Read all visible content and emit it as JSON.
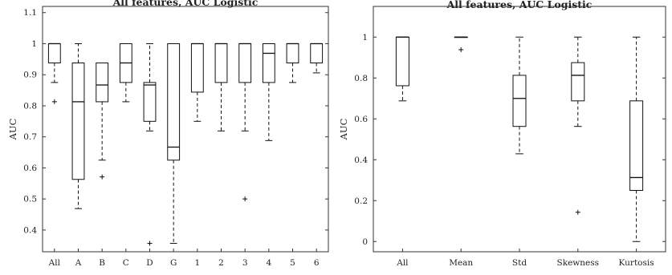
{
  "chart_data": [
    {
      "type": "box",
      "title": "All features, AUC Logistic",
      "xlabel": "",
      "ylabel": "AUC",
      "ylim": [
        0.33,
        1.12
      ],
      "yticks": [
        "0.4",
        "0.5",
        "0.6",
        "0.7",
        "0.8",
        "0.9",
        "1",
        "1.1"
      ],
      "categories": [
        "All",
        "A",
        "B",
        "C",
        "D",
        "G",
        "1",
        "2",
        "3",
        "4",
        "5",
        "6"
      ],
      "boxes": [
        {
          "whislo": 0.875,
          "q1": 0.938,
          "med": 1.0,
          "q3": 1.0,
          "whishi": 1.0,
          "fliers": [
            0.813
          ]
        },
        {
          "whislo": 0.469,
          "q1": 0.563,
          "med": 0.813,
          "q3": 0.938,
          "whishi": 1.0,
          "fliers": []
        },
        {
          "whislo": 0.625,
          "q1": 0.813,
          "med": 0.867,
          "q3": 0.938,
          "whishi": 0.938,
          "fliers": [
            0.571
          ]
        },
        {
          "whislo": 0.813,
          "q1": 0.875,
          "med": 0.938,
          "q3": 1.0,
          "whishi": 1.0,
          "fliers": []
        },
        {
          "whislo": 0.719,
          "q1": 0.75,
          "med": 0.867,
          "q3": 0.875,
          "whishi": 1.0,
          "fliers": [
            0.357
          ]
        },
        {
          "whislo": 0.357,
          "q1": 0.625,
          "med": 0.667,
          "q3": 1.0,
          "whishi": 1.0,
          "fliers": []
        },
        {
          "whislo": 0.75,
          "q1": 0.844,
          "med": 1.0,
          "q3": 1.0,
          "whishi": 1.0,
          "fliers": []
        },
        {
          "whislo": 0.719,
          "q1": 0.875,
          "med": 1.0,
          "q3": 1.0,
          "whishi": 1.0,
          "fliers": []
        },
        {
          "whislo": 0.719,
          "q1": 0.875,
          "med": 1.0,
          "q3": 1.0,
          "whishi": 1.0,
          "fliers": [
            0.5
          ]
        },
        {
          "whislo": 0.688,
          "q1": 0.875,
          "med": 0.969,
          "q3": 1.0,
          "whishi": 1.0,
          "fliers": []
        },
        {
          "whislo": 0.875,
          "q1": 0.938,
          "med": 1.0,
          "q3": 1.0,
          "whishi": 1.0,
          "fliers": []
        },
        {
          "whislo": 0.906,
          "q1": 0.938,
          "med": 1.0,
          "q3": 1.0,
          "whishi": 1.0,
          "fliers": []
        }
      ]
    },
    {
      "type": "box",
      "title": "All features, AUC Logistic",
      "xlabel": "",
      "ylabel": "AUC",
      "ylim": [
        -0.05,
        1.15
      ],
      "yticks": [
        "0",
        "0.2",
        "0.4",
        "0.6",
        "0.8",
        "1"
      ],
      "categories": [
        "All",
        "Mean",
        "Std",
        "Skewness",
        "Kurtosis"
      ],
      "boxes": [
        {
          "whislo": 0.688,
          "q1": 0.762,
          "med": 1.0,
          "q3": 1.0,
          "whishi": 1.0,
          "fliers": []
        },
        {
          "whislo": 1.0,
          "q1": 1.0,
          "med": 1.0,
          "q3": 1.0,
          "whishi": 1.0,
          "fliers": [
            0.938
          ]
        },
        {
          "whislo": 0.429,
          "q1": 0.563,
          "med": 0.7,
          "q3": 0.813,
          "whishi": 1.0,
          "fliers": []
        },
        {
          "whislo": 0.563,
          "q1": 0.688,
          "med": 0.813,
          "q3": 0.875,
          "whishi": 1.0,
          "fliers": [
            0.143
          ]
        },
        {
          "whislo": 0.0,
          "q1": 0.25,
          "med": 0.313,
          "q3": 0.688,
          "whishi": 1.0,
          "fliers": []
        }
      ]
    }
  ]
}
